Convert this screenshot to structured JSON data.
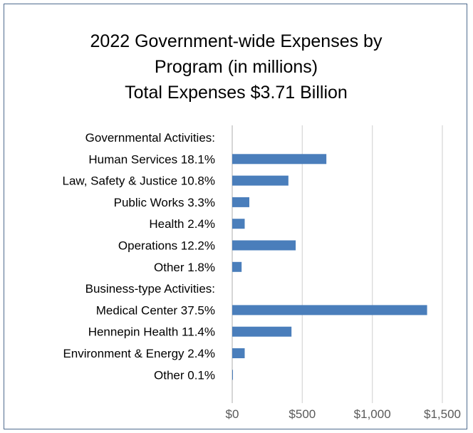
{
  "chart_data": {
    "type": "bar",
    "orientation": "horizontal",
    "title": [
      "2022 Government-wide Expenses by",
      "Program (in millions)",
      "Total Expenses $3.71 Billion"
    ],
    "categories": [
      "Governmental Activities:",
      "Human Services 18.1%",
      "Law, Safety & Justice 10.8%",
      "Public Works 3.3%",
      "Health 2.4%",
      "Operations 12.2%",
      "Other 1.8%",
      "Business-type Activities:",
      "Medical Center 37.5%",
      "Hennepin Health 11.4%",
      "Environment & Energy 2.4%",
      "Other 0.1%"
    ],
    "values": [
      null,
      672,
      401,
      122,
      89,
      453,
      67,
      null,
      1391,
      423,
      89,
      4
    ],
    "xlim": [
      0,
      1500
    ],
    "x_ticks": [
      0,
      500,
      1000,
      1500
    ],
    "x_tick_labels": [
      "$0",
      "$500",
      "$1,000",
      "$1,500"
    ],
    "grid": "vertical",
    "legend": "none",
    "bar_color": "#4a7ebb",
    "grid_color": "#d9d9d9",
    "xlabel": "",
    "ylabel": ""
  }
}
